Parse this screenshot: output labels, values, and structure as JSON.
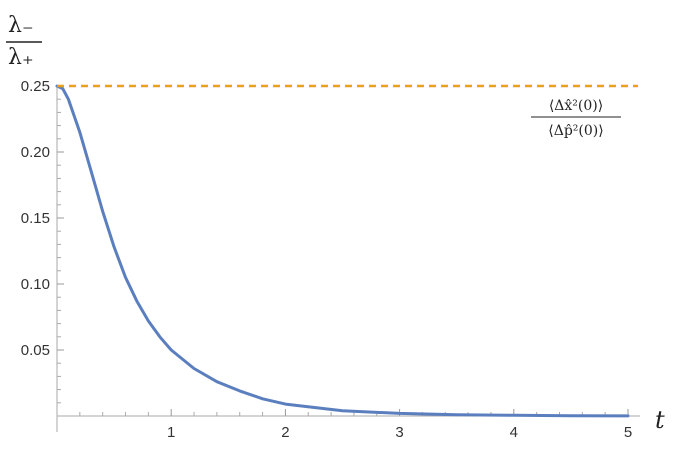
{
  "chart_data": {
    "type": "line",
    "title": "",
    "xlabel": "t",
    "ylabel_numerator": "λ₋",
    "ylabel_denominator": "λ₊",
    "xlim": [
      0,
      5
    ],
    "ylim": [
      0,
      0.25
    ],
    "x_ticks": [
      "1",
      "2",
      "3",
      "4",
      "5"
    ],
    "y_ticks": [
      "0.05",
      "0.10",
      "0.15",
      "0.20",
      "0.25"
    ],
    "grid": false,
    "series": [
      {
        "color": "#5b7fbe",
        "style": "solid",
        "x": [
          0,
          0.05,
          0.1,
          0.2,
          0.3,
          0.4,
          0.5,
          0.6,
          0.7,
          0.8,
          0.9,
          1.0,
          1.2,
          1.4,
          1.6,
          1.8,
          2.0,
          2.5,
          3.0,
          3.5,
          4.0,
          4.5,
          5.0
        ],
        "y": [
          0.25,
          0.248,
          0.24,
          0.215,
          0.185,
          0.155,
          0.128,
          0.105,
          0.087,
          0.072,
          0.06,
          0.05,
          0.036,
          0.026,
          0.019,
          0.013,
          0.009,
          0.004,
          0.002,
          0.001,
          0.0005,
          0.0002,
          0.0001
        ]
      },
      {
        "color": "#e8a020",
        "style": "dashed",
        "x": [
          0,
          5
        ],
        "y": [
          0.25,
          0.25
        ]
      }
    ],
    "annotation": {
      "numerator": "⟨Δx̂²(0)⟩",
      "denominator": "⟨Δp̂²(0)⟩"
    }
  }
}
